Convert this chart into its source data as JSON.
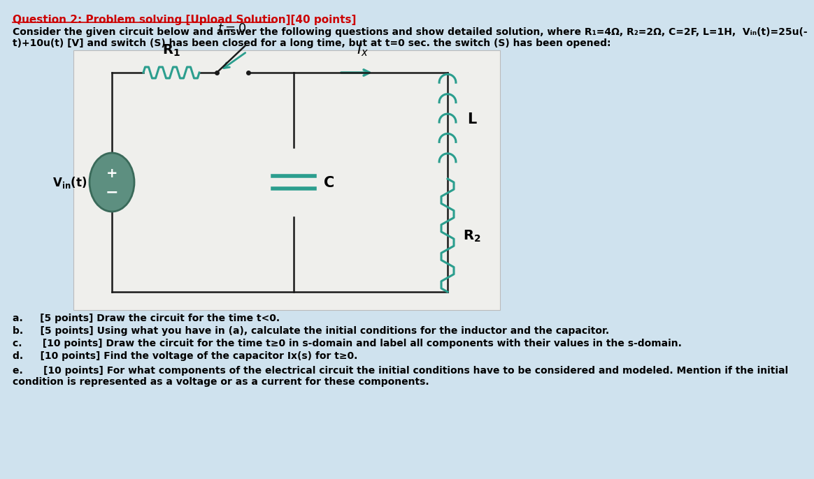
{
  "bg_color": "#cfe2ee",
  "circuit_bg": "#f0f0ee",
  "title_text": "Question 2: Problem solving [Upload Solution][40 points]",
  "title_color": "#cc0000",
  "desc_line1": "Consider the given circuit below and answer the following questions and show detailed solution, where R₁=4Ω, R₂=2Ω, C=2F, L=1H,  Vᵢₙ(t)=25u(-",
  "desc_line2": "t)+10u(t) [V] and switch (S) has been closed for a long time, but at t=0 sec. the switch (S) has been opened:",
  "wire_color": "#1a1a1a",
  "component_color": "#2b9e8e",
  "arrow_color": "#2b9e8e",
  "q_a": "a.     [5 points] Draw the circuit for the time t<0.",
  "q_b": "b.     [5 points] Using what you have in (a), calculate the initial conditions for the inductor and the capacitor.",
  "q_c": "c.      [10 points] Draw the circuit for the time t≥0 in s-domain and label all components with their values in the s-domain.",
  "q_d": "d.     [10 points] Find the voltage of the capacitor Ix(s) for t≥0.",
  "q_e1": "e.      [10 points] For what components of the electrical circuit the initial conditions have to be considered and modeled. Mention if the initial",
  "q_e2": "condition is represented as a voltage or as a current for these components."
}
